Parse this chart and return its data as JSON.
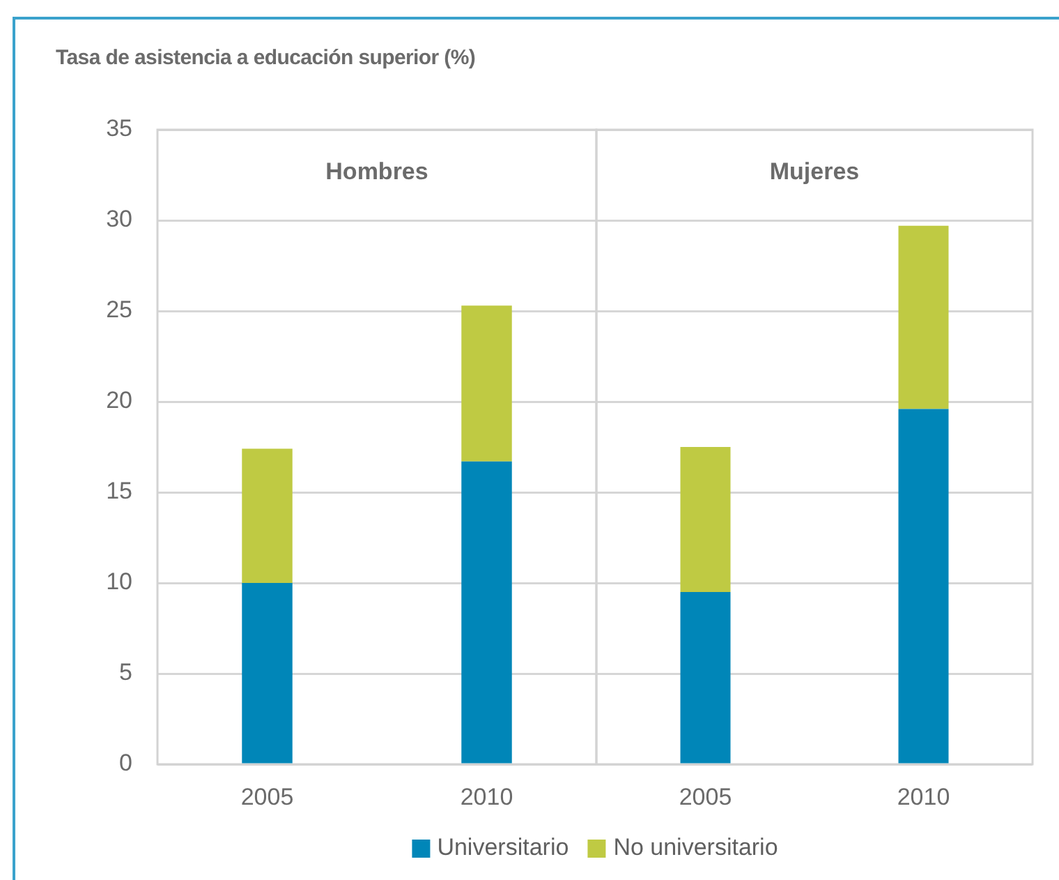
{
  "chart_data": [
    {
      "type": "bar",
      "title": "Hombres",
      "ylabel": "Tasa de asistencia a educación superior (%)",
      "categories": [
        "2005",
        "2010"
      ],
      "series": [
        {
          "name": "Universitario",
          "color": "#0086b8",
          "values": [
            10.0,
            16.7
          ]
        },
        {
          "name": "No universitario",
          "color": "#bfca43",
          "values": [
            7.4,
            8.6
          ]
        }
      ],
      "stacked": true,
      "ylim": [
        0,
        35
      ],
      "yticks": [
        0,
        5,
        10,
        15,
        20,
        25,
        30,
        35
      ],
      "grid": "y",
      "legend": "bottom"
    },
    {
      "type": "bar",
      "title": "Mujeres",
      "categories": [
        "2005",
        "2010"
      ],
      "series": [
        {
          "name": "Universitario",
          "color": "#0086b8",
          "values": [
            9.5,
            19.6
          ]
        },
        {
          "name": "No universitario",
          "color": "#bfca43",
          "values": [
            8.0,
            10.1
          ]
        }
      ],
      "stacked": true,
      "ylim": [
        0,
        35
      ],
      "yticks": [
        0,
        5,
        10,
        15,
        20,
        25,
        30,
        35
      ],
      "grid": "y",
      "tick_labels": "x"
    }
  ]
}
